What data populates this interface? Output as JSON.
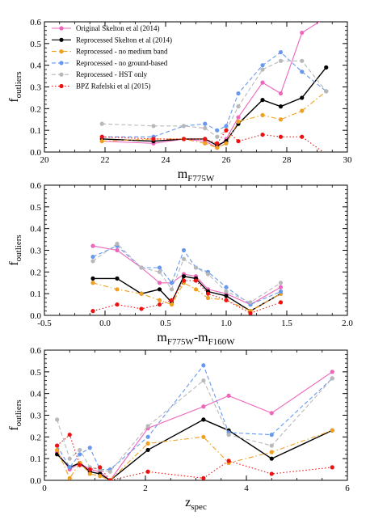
{
  "chart_data": [
    {
      "type": "line",
      "xlabel": "m",
      "xlabel_sub": "F775W",
      "ylabel": "f",
      "ylabel_sub": "outliers",
      "xlim": [
        20,
        30
      ],
      "ylim": [
        0,
        0.6
      ],
      "xticks": [
        20,
        22,
        24,
        26,
        28,
        30
      ],
      "yticks": [
        0.0,
        0.1,
        0.2,
        0.3,
        0.4,
        0.5,
        0.6
      ],
      "legend_position": "top-left",
      "series": [
        {
          "name": "Original Skelton et al (2014)",
          "color": "#ee66bb",
          "style": "solid",
          "x": [
            21.9,
            23.6,
            24.6,
            25.3,
            25.7,
            26.0,
            26.4,
            27.2,
            27.8,
            28.5,
            29.3
          ],
          "y": [
            0.05,
            0.04,
            0.06,
            0.05,
            0.02,
            0.06,
            0.16,
            0.32,
            0.27,
            0.55,
            0.62
          ]
        },
        {
          "name": "Reprocessed Skelton et al (2014)",
          "color": "#000000",
          "style": "solid",
          "x": [
            21.9,
            23.6,
            24.6,
            25.3,
            25.7,
            26.0,
            26.4,
            27.2,
            27.8,
            28.5,
            29.3
          ],
          "y": [
            0.06,
            0.05,
            0.06,
            0.06,
            0.03,
            0.05,
            0.13,
            0.24,
            0.21,
            0.25,
            0.39
          ]
        },
        {
          "name": "Reprocessed - no medium band",
          "color": "#f0a020",
          "style": "dashdot",
          "x": [
            21.9,
            23.6,
            24.6,
            25.3,
            25.7,
            26.0,
            26.4,
            27.2,
            27.8,
            28.5,
            29.3
          ],
          "y": [
            0.05,
            0.06,
            0.06,
            0.04,
            0.02,
            0.04,
            0.14,
            0.17,
            0.15,
            0.19,
            0.28
          ]
        },
        {
          "name": "Reprocessed - no ground-based",
          "color": "#6699ee",
          "style": "dashed",
          "x": [
            21.9,
            23.6,
            24.6,
            25.3,
            25.7,
            26.0,
            26.4,
            27.2,
            27.8,
            28.5,
            29.3
          ],
          "y": [
            0.07,
            0.07,
            0.12,
            0.13,
            0.1,
            0.12,
            0.27,
            0.4,
            0.46,
            0.37,
            0.28
          ]
        },
        {
          "name": "Reprocessed - HST only",
          "color": "#b8b8b8",
          "style": "dashed",
          "x": [
            21.9,
            23.6,
            24.6,
            25.3,
            25.7,
            26.0,
            26.4,
            27.2,
            27.8,
            28.5,
            29.3
          ],
          "y": [
            0.13,
            0.12,
            0.12,
            0.11,
            0.07,
            0.1,
            0.21,
            0.38,
            0.42,
            0.42,
            0.28
          ]
        },
        {
          "name": "BPZ Rafelski et al (2015)",
          "color": "#ee1111",
          "style": "dotted",
          "x": [
            21.9,
            23.6,
            24.6,
            25.3,
            25.7,
            26.0,
            26.4,
            27.2,
            27.8,
            28.5,
            29.3
          ],
          "y": [
            0.07,
            0.06,
            0.06,
            0.06,
            0.04,
            0.1,
            0.05,
            0.08,
            0.07,
            0.07,
            -0.01
          ]
        }
      ]
    },
    {
      "type": "line",
      "xlabel": "m",
      "xlabel_sub": "F775W",
      "xlabel_mid": "-m",
      "xlabel_sub2": "F160W",
      "ylabel": "f",
      "ylabel_sub": "outliers",
      "xlim": [
        -0.5,
        2.0
      ],
      "ylim": [
        0,
        0.6
      ],
      "xticks": [
        -0.5,
        0.0,
        0.5,
        1.0,
        1.5,
        2.0
      ],
      "yticks": [
        0.0,
        0.1,
        0.2,
        0.3,
        0.4,
        0.5,
        0.6
      ],
      "series": [
        {
          "name": "Original Skelton et al (2014)",
          "color": "#ee66bb",
          "style": "solid",
          "x": [
            -0.1,
            0.1,
            0.3,
            0.45,
            0.55,
            0.65,
            0.75,
            0.85,
            1.0,
            1.2,
            1.45
          ],
          "y": [
            0.32,
            0.3,
            0.22,
            0.15,
            0.15,
            0.19,
            0.18,
            0.12,
            0.1,
            0.05,
            0.13
          ]
        },
        {
          "name": "Reprocessed Skelton et al (2014)",
          "color": "#000000",
          "style": "solid",
          "x": [
            -0.1,
            0.1,
            0.3,
            0.45,
            0.55,
            0.65,
            0.75,
            0.85,
            1.0,
            1.2,
            1.45
          ],
          "y": [
            0.17,
            0.17,
            0.1,
            0.12,
            0.06,
            0.18,
            0.17,
            0.11,
            0.09,
            0.02,
            0.1
          ]
        },
        {
          "name": "Reprocessed - no medium band",
          "color": "#f0a020",
          "style": "dashdot",
          "x": [
            -0.1,
            0.1,
            0.3,
            0.45,
            0.55,
            0.65,
            0.75,
            0.85,
            1.0,
            1.2,
            1.45
          ],
          "y": [
            0.15,
            0.12,
            0.1,
            0.07,
            0.05,
            0.15,
            0.12,
            0.08,
            0.07,
            0.02,
            0.1
          ]
        },
        {
          "name": "Reprocessed - no ground-based",
          "color": "#6699ee",
          "style": "dashed",
          "x": [
            -0.1,
            0.1,
            0.3,
            0.45,
            0.55,
            0.65,
            0.75,
            0.85,
            1.0,
            1.2,
            1.45
          ],
          "y": [
            0.27,
            0.32,
            0.22,
            0.22,
            0.15,
            0.3,
            0.22,
            0.2,
            0.13,
            0.05,
            0.11
          ]
        },
        {
          "name": "Reprocessed - HST only",
          "color": "#b8b8b8",
          "style": "dashed",
          "x": [
            -0.1,
            0.1,
            0.3,
            0.45,
            0.55,
            0.65,
            0.75,
            0.85,
            1.0,
            1.2,
            1.45
          ],
          "y": [
            0.25,
            0.33,
            0.22,
            0.2,
            0.12,
            0.26,
            0.22,
            0.19,
            0.11,
            0.06,
            0.15
          ]
        },
        {
          "name": "BPZ Rafelski et al (2015)",
          "color": "#ee1111",
          "style": "dotted",
          "x": [
            -0.1,
            0.1,
            0.3,
            0.45,
            0.55,
            0.65,
            0.75,
            0.85,
            1.0,
            1.2,
            1.45
          ],
          "y": [
            0.02,
            0.05,
            0.03,
            0.05,
            0.07,
            0.16,
            0.16,
            0.1,
            0.07,
            0.01,
            0.06
          ]
        }
      ]
    },
    {
      "type": "line",
      "xlabel": "z",
      "xlabel_sub": "spec",
      "ylabel": "f",
      "ylabel_sub": "outliers",
      "xlim": [
        0,
        6
      ],
      "ylim": [
        0,
        0.6
      ],
      "xticks": [
        0,
        2,
        4,
        6
      ],
      "yticks": [
        0.0,
        0.1,
        0.2,
        0.3,
        0.4,
        0.5,
        0.6
      ],
      "series": [
        {
          "name": "Original Skelton et al (2014)",
          "color": "#ee66bb",
          "style": "solid",
          "x": [
            0.25,
            0.5,
            0.7,
            0.9,
            1.1,
            1.3,
            2.05,
            3.15,
            3.65,
            4.5,
            5.7
          ],
          "y": [
            0.13,
            0.05,
            0.08,
            0.05,
            0.04,
            0.0,
            0.24,
            0.34,
            0.39,
            0.31,
            0.5
          ]
        },
        {
          "name": "Reprocessed Skelton et al (2014)",
          "color": "#000000",
          "style": "solid",
          "x": [
            0.25,
            0.5,
            0.7,
            0.9,
            1.1,
            1.3,
            2.05,
            3.15,
            3.65,
            4.5,
            5.7
          ],
          "y": [
            0.12,
            0.06,
            0.08,
            0.04,
            0.03,
            0.0,
            0.14,
            0.28,
            0.23,
            0.1,
            0.23
          ]
        },
        {
          "name": "Reprocessed - no medium band",
          "color": "#f0a020",
          "style": "dashdot",
          "x": [
            0.25,
            0.5,
            0.7,
            0.9,
            1.1,
            1.3,
            2.05,
            3.15,
            3.65,
            4.5,
            5.7
          ],
          "y": [
            0.14,
            0.01,
            0.08,
            0.03,
            0.02,
            0.0,
            0.17,
            0.2,
            0.08,
            0.13,
            0.23
          ]
        },
        {
          "name": "Reprocessed - no ground-based",
          "color": "#6699ee",
          "style": "dashed",
          "x": [
            0.25,
            0.5,
            0.7,
            0.9,
            1.1,
            1.3,
            2.05,
            3.15,
            3.65,
            4.5,
            5.7
          ],
          "y": [
            0.16,
            0.06,
            0.12,
            0.15,
            0.05,
            0.05,
            0.2,
            0.53,
            0.22,
            0.21,
            0.47
          ]
        },
        {
          "name": "Reprocessed - HST only",
          "color": "#b8b8b8",
          "style": "dashed",
          "x": [
            0.25,
            0.5,
            0.7,
            0.9,
            1.1,
            1.3,
            2.05,
            3.15,
            3.65,
            4.5,
            5.7
          ],
          "y": [
            0.28,
            0.1,
            0.14,
            0.06,
            0.05,
            0.04,
            0.25,
            0.46,
            0.21,
            0.16,
            0.47
          ]
        },
        {
          "name": "BPZ Rafelski et al (2015)",
          "color": "#ee1111",
          "style": "dotted",
          "x": [
            0.25,
            0.5,
            0.7,
            0.9,
            1.1,
            1.3,
            2.05,
            3.15,
            3.65,
            4.5,
            5.7
          ],
          "y": [
            0.16,
            0.21,
            0.07,
            0.05,
            0.06,
            0.0,
            0.04,
            0.01,
            0.09,
            0.03,
            0.06
          ]
        }
      ]
    }
  ]
}
